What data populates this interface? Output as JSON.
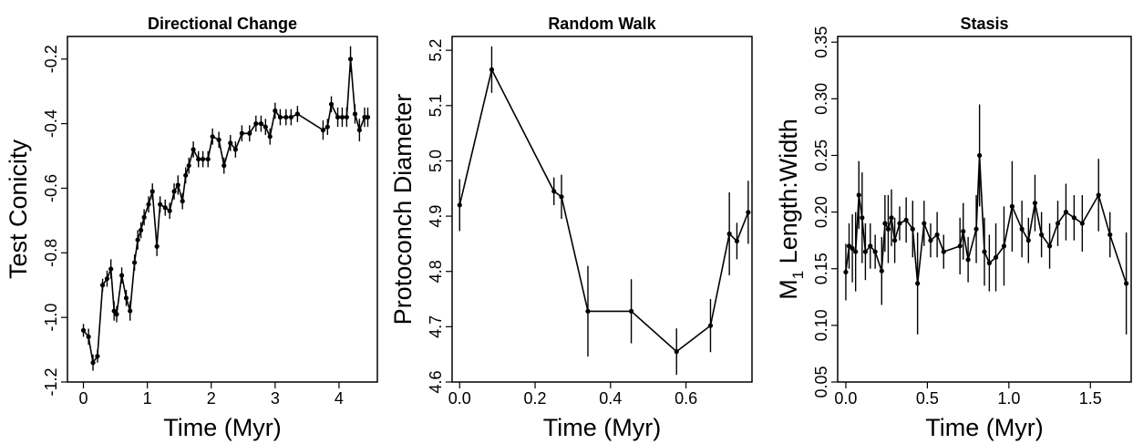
{
  "chart_data": [
    {
      "type": "line",
      "title": "Directional Change",
      "xlabel": "Time (Myr)",
      "ylabel": "Test Conicity",
      "xlim": [
        -0.25,
        4.6
      ],
      "ylim": [
        -1.2,
        -0.13
      ],
      "x_ticks": [
        0,
        1,
        2,
        3,
        4
      ],
      "x_tick_labels": [
        "0",
        "1",
        "2",
        "3",
        "4"
      ],
      "y_ticks": [
        -1.2,
        -1.0,
        -0.8,
        -0.6,
        -0.4,
        -0.2
      ],
      "y_tick_labels": [
        "-1.2",
        "-1.0",
        "-0.8",
        "-0.6",
        "-0.4",
        "-0.2"
      ],
      "grid": false,
      "series": [
        {
          "x": [
            0.0,
            0.08,
            0.15,
            0.22,
            0.3,
            0.37,
            0.43,
            0.48,
            0.52,
            0.6,
            0.67,
            0.73,
            0.8,
            0.85,
            0.9,
            0.95,
            1.02,
            1.08,
            1.15,
            1.2,
            1.28,
            1.35,
            1.42,
            1.48,
            1.55,
            1.6,
            1.65,
            1.72,
            1.8,
            1.87,
            1.95,
            2.02,
            2.12,
            2.2,
            2.3,
            2.38,
            2.48,
            2.6,
            2.7,
            2.78,
            2.85,
            2.92,
            3.0,
            3.08,
            3.17,
            3.25,
            3.35,
            3.75,
            3.82,
            3.88,
            3.98,
            4.05,
            4.12,
            4.18,
            4.25,
            4.32,
            4.4,
            4.45
          ],
          "y": [
            -1.04,
            -1.06,
            -1.14,
            -1.12,
            -0.9,
            -0.88,
            -0.85,
            -0.98,
            -0.99,
            -0.87,
            -0.94,
            -0.98,
            -0.83,
            -0.76,
            -0.73,
            -0.69,
            -0.65,
            -0.61,
            -0.78,
            -0.65,
            -0.66,
            -0.67,
            -0.61,
            -0.59,
            -0.64,
            -0.56,
            -0.53,
            -0.48,
            -0.51,
            -0.51,
            -0.51,
            -0.44,
            -0.45,
            -0.53,
            -0.46,
            -0.48,
            -0.43,
            -0.43,
            -0.4,
            -0.4,
            -0.41,
            -0.44,
            -0.36,
            -0.38,
            -0.38,
            -0.38,
            -0.37,
            -0.42,
            -0.41,
            -0.34,
            -0.38,
            -0.38,
            -0.38,
            -0.2,
            -0.37,
            -0.42,
            -0.38,
            -0.38
          ],
          "error": [
            0.02,
            0.025,
            0.025,
            0.02,
            0.02,
            0.025,
            0.03,
            0.03,
            0.025,
            0.025,
            0.025,
            0.03,
            0.025,
            0.03,
            0.025,
            0.025,
            0.025,
            0.025,
            0.03,
            0.025,
            0.025,
            0.025,
            0.025,
            0.03,
            0.025,
            0.025,
            0.025,
            0.025,
            0.025,
            0.025,
            0.025,
            0.025,
            0.025,
            0.025,
            0.025,
            0.025,
            0.025,
            0.025,
            0.025,
            0.025,
            0.025,
            0.025,
            0.025,
            0.025,
            0.025,
            0.025,
            0.025,
            0.03,
            0.025,
            0.025,
            0.03,
            0.03,
            0.03,
            0.04,
            0.03,
            0.035,
            0.03,
            0.03
          ]
        }
      ]
    },
    {
      "type": "line",
      "title": "Random Walk",
      "xlabel": "Time (Myr)",
      "ylabel": "Protoconch Diameter",
      "xlim": [
        -0.02,
        0.775
      ],
      "ylim": [
        4.6,
        5.225
      ],
      "x_ticks": [
        0.0,
        0.2,
        0.4,
        0.6
      ],
      "x_tick_labels": [
        "0.0",
        "0.2",
        "0.4",
        "0.6"
      ],
      "y_ticks": [
        4.6,
        4.7,
        4.8,
        4.9,
        5.0,
        5.1,
        5.2
      ],
      "y_tick_labels": [
        "4.6",
        "4.7",
        "4.8",
        "4.9",
        "5.0",
        "5.1",
        "5.2"
      ],
      "grid": false,
      "series": [
        {
          "x": [
            0.0,
            0.085,
            0.25,
            0.27,
            0.34,
            0.455,
            0.575,
            0.665,
            0.715,
            0.735,
            0.765
          ],
          "y": [
            4.92,
            5.165,
            4.945,
            4.935,
            4.728,
            4.728,
            4.655,
            4.702,
            4.868,
            4.855,
            4.907
          ],
          "error": [
            0.047,
            0.042,
            0.025,
            0.04,
            0.082,
            0.058,
            0.042,
            0.048,
            0.075,
            0.033,
            0.057
          ]
        }
      ]
    },
    {
      "type": "line",
      "title": "Stasis",
      "xlabel": "Time (Myr)",
      "ylabel": "M1 Length:Width",
      "ylabel_parts": [
        "M",
        "1",
        " Length:Width"
      ],
      "xlim": [
        -0.05,
        1.75
      ],
      "ylim": [
        0.05,
        0.355
      ],
      "x_ticks": [
        0.0,
        0.5,
        1.0,
        1.5
      ],
      "x_tick_labels": [
        "0.0",
        "0.5",
        "1.0",
        "1.5"
      ],
      "y_ticks": [
        0.05,
        0.1,
        0.15,
        0.2,
        0.25,
        0.3,
        0.35
      ],
      "y_tick_labels": [
        "0.05",
        "0.10",
        "0.15",
        "0.20",
        "0.25",
        "0.30",
        "0.35"
      ],
      "grid": false,
      "series": [
        {
          "x": [
            0.0,
            0.02,
            0.04,
            0.06,
            0.08,
            0.1,
            0.12,
            0.15,
            0.18,
            0.22,
            0.24,
            0.26,
            0.28,
            0.3,
            0.33,
            0.37,
            0.41,
            0.44,
            0.48,
            0.52,
            0.56,
            0.6,
            0.7,
            0.72,
            0.75,
            0.8,
            0.82,
            0.85,
            0.88,
            0.92,
            0.97,
            1.02,
            1.08,
            1.12,
            1.16,
            1.2,
            1.25,
            1.3,
            1.35,
            1.4,
            1.45,
            1.55,
            1.62,
            1.72
          ],
          "y": [
            0.147,
            0.17,
            0.168,
            0.165,
            0.215,
            0.195,
            0.165,
            0.17,
            0.165,
            0.148,
            0.19,
            0.185,
            0.195,
            0.175,
            0.19,
            0.193,
            0.185,
            0.137,
            0.19,
            0.175,
            0.18,
            0.165,
            0.17,
            0.183,
            0.158,
            0.185,
            0.25,
            0.165,
            0.155,
            0.16,
            0.17,
            0.205,
            0.185,
            0.175,
            0.208,
            0.18,
            0.17,
            0.19,
            0.2,
            0.195,
            0.19,
            0.215,
            0.18,
            0.137
          ],
          "error": [
            0.025,
            0.02,
            0.03,
            0.035,
            0.03,
            0.04,
            0.025,
            0.02,
            0.015,
            0.03,
            0.025,
            0.03,
            0.025,
            0.02,
            0.015,
            0.02,
            0.025,
            0.045,
            0.02,
            0.015,
            0.02,
            0.015,
            0.025,
            0.025,
            0.02,
            0.03,
            0.045,
            0.03,
            0.025,
            0.03,
            0.035,
            0.04,
            0.025,
            0.02,
            0.025,
            0.02,
            0.02,
            0.02,
            0.025,
            0.02,
            0.025,
            0.032,
            0.02,
            0.045
          ]
        }
      ]
    }
  ]
}
